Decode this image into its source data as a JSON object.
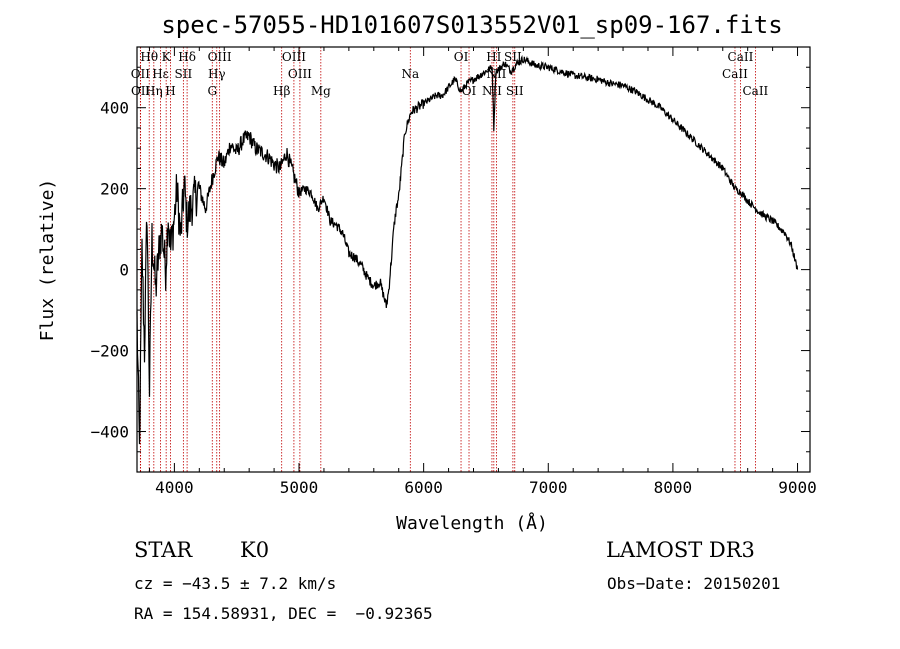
{
  "chart_data": {
    "type": "line",
    "title": "spec-57055-HD101607S013552V01_sp09-167.fits",
    "xlabel": "Wavelength (Å)",
    "ylabel": "Flux (relative)",
    "xlim": [
      3700,
      9100
    ],
    "ylim": [
      -500,
      550
    ],
    "xticks": [
      4000,
      5000,
      6000,
      7000,
      8000,
      9000
    ],
    "yticks": [
      -400,
      -200,
      0,
      200,
      400
    ],
    "series": [
      {
        "x": [
          3700,
          3720,
          3740,
          3760,
          3780,
          3800,
          3820,
          3850,
          3880,
          3900,
          3930,
          3950,
          3970,
          4000,
          4020,
          4050,
          4080,
          4100,
          4150,
          4200,
          4250,
          4300,
          4350,
          4400,
          4450,
          4500,
          4550,
          4600,
          4650,
          4700,
          4750,
          4800,
          4850,
          4900,
          4950,
          5000,
          5050,
          5100,
          5150,
          5200,
          5250,
          5300,
          5350,
          5400,
          5450,
          5500,
          5550,
          5600,
          5650,
          5700,
          5720,
          5740,
          5760,
          5780,
          5800,
          5850,
          5880,
          5900,
          5950,
          6000,
          6050,
          6100,
          6150,
          6200,
          6250,
          6300,
          6350,
          6400,
          6450,
          6500,
          6550,
          6563,
          6580,
          6620,
          6650,
          6700,
          6750,
          6800,
          6900,
          7000,
          7100,
          7200,
          7300,
          7400,
          7500,
          7600,
          7700,
          7800,
          7900,
          8000,
          8100,
          8200,
          8300,
          8400,
          8500,
          8550,
          8600,
          8700,
          8800,
          8900,
          8950,
          9000
        ],
        "y": [
          -120,
          -450,
          50,
          -200,
          150,
          -300,
          80,
          -50,
          60,
          100,
          0,
          140,
          50,
          130,
          200,
          80,
          210,
          120,
          170,
          200,
          150,
          220,
          280,
          260,
          310,
          290,
          320,
          330,
          300,
          290,
          280,
          260,
          250,
          290,
          240,
          190,
          200,
          190,
          150,
          180,
          120,
          110,
          90,
          40,
          30,
          10,
          -20,
          -40,
          -30,
          -90,
          -50,
          20,
          100,
          150,
          180,
          340,
          370,
          390,
          400,
          410,
          420,
          430,
          430,
          450,
          470,
          440,
          460,
          470,
          480,
          490,
          500,
          350,
          490,
          500,
          510,
          490,
          510,
          520,
          505,
          500,
          490,
          480,
          475,
          470,
          460,
          455,
          440,
          420,
          400,
          370,
          340,
          310,
          280,
          250,
          200,
          190,
          170,
          140,
          120,
          90,
          60,
          0
        ]
      }
    ],
    "spectral_lines": [
      {
        "label": "Hθ",
        "x": 3798,
        "row": 0
      },
      {
        "label": "K",
        "x": 3934,
        "row": 0
      },
      {
        "label": "Hδ",
        "x": 4102,
        "row": 0
      },
      {
        "label": "OIII",
        "x": 4363,
        "row": 0
      },
      {
        "label": "OIII",
        "x": 4959,
        "row": 0
      },
      {
        "label": "OI",
        "x": 6300,
        "row": 0
      },
      {
        "label": "HI",
        "x": 6563,
        "row": 0
      },
      {
        "label": "SII",
        "x": 6716,
        "row": 0
      },
      {
        "label": "CaII",
        "x": 8542,
        "row": 0
      },
      {
        "label": "OII",
        "x": 3727,
        "row": 1
      },
      {
        "label": "Hε",
        "x": 3889,
        "row": 1
      },
      {
        "label": "SII",
        "x": 4072,
        "row": 1
      },
      {
        "label": "Hγ",
        "x": 4340,
        "row": 1
      },
      {
        "label": "OIII",
        "x": 5007,
        "row": 1
      },
      {
        "label": "Na",
        "x": 5893,
        "row": 1
      },
      {
        "label": "NII",
        "x": 6584,
        "row": 1
      },
      {
        "label": "CaII",
        "x": 8498,
        "row": 1
      },
      {
        "label": "OII",
        "x": 3729,
        "row": 2
      },
      {
        "label": "Hη",
        "x": 3835,
        "row": 2
      },
      {
        "label": "H",
        "x": 3969,
        "row": 2
      },
      {
        "label": "G",
        "x": 4304,
        "row": 2
      },
      {
        "label": "Hβ",
        "x": 4861,
        "row": 2
      },
      {
        "label": "Mg",
        "x": 5175,
        "row": 2
      },
      {
        "label": "OI",
        "x": 6364,
        "row": 2
      },
      {
        "label": "NII",
        "x": 6548,
        "row": 2
      },
      {
        "label": "SII",
        "x": 6731,
        "row": 2
      },
      {
        "label": "CaII",
        "x": 8662,
        "row": 2
      }
    ]
  },
  "info": {
    "object_class": "STAR",
    "subclass": "K0",
    "survey": "LAMOST DR3",
    "redshift": "cz = −43.5 ± 7.2 km/s",
    "obs_date": "Obs−Date: 20150201",
    "coords": "RA = 154.58931, DEC =  −0.92365"
  },
  "colors": {
    "axes": "#000000",
    "spectrum": "#000000",
    "line_markers": "#c00000"
  }
}
